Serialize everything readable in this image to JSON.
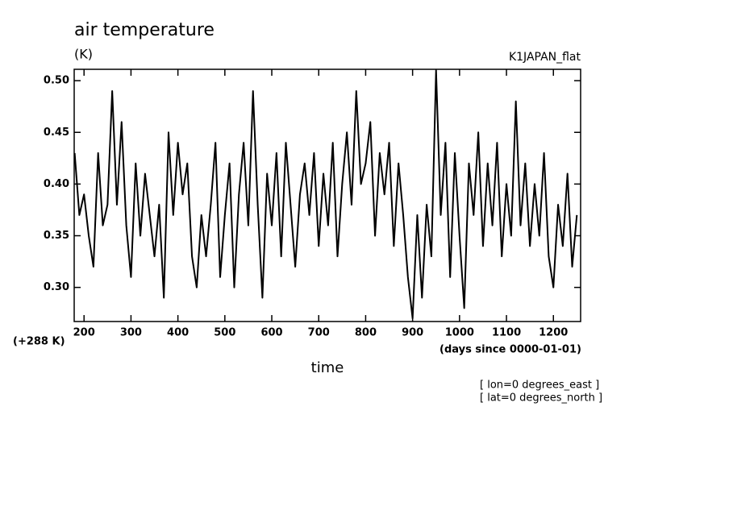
{
  "chart_data": {
    "type": "line",
    "title": "air temperature",
    "units": "(K)",
    "dataset": "K1JAPAN_flat",
    "y_offset_label": "(+288 K)",
    "xlabel": "time",
    "x_units": "(days since 0000-01-01)",
    "annotations": [
      "[ lon=0 degrees_east ]",
      "[ lat=0 degrees_north ]"
    ],
    "color": "#000000",
    "xlim": [
      179,
      1258
    ],
    "ylim": [
      0.267,
      0.511
    ],
    "xticks": [
      200,
      300,
      400,
      500,
      600,
      700,
      800,
      900,
      1000,
      1100,
      1200
    ],
    "yticks": [
      {
        "value": 0.3,
        "label": "0.30"
      },
      {
        "value": 0.35,
        "label": "0.35"
      },
      {
        "value": 0.4,
        "label": "0.40"
      },
      {
        "value": 0.45,
        "label": "0.45"
      },
      {
        "value": 0.5,
        "label": "0.50"
      }
    ],
    "x": [
      180,
      190,
      200,
      210,
      220,
      230,
      240,
      250,
      260,
      270,
      280,
      290,
      300,
      310,
      320,
      330,
      340,
      350,
      360,
      370,
      380,
      390,
      400,
      410,
      420,
      430,
      440,
      450,
      460,
      470,
      480,
      490,
      500,
      510,
      520,
      530,
      540,
      550,
      560,
      570,
      580,
      590,
      600,
      610,
      620,
      630,
      640,
      650,
      660,
      670,
      680,
      690,
      700,
      710,
      720,
      730,
      740,
      750,
      760,
      770,
      780,
      790,
      800,
      810,
      820,
      830,
      840,
      850,
      860,
      870,
      880,
      890,
      900,
      910,
      920,
      930,
      940,
      950,
      960,
      970,
      980,
      990,
      1000,
      1010,
      1020,
      1030,
      1040,
      1050,
      1060,
      1070,
      1080,
      1090,
      1100,
      1110,
      1120,
      1130,
      1140,
      1150,
      1160,
      1170,
      1180,
      1190,
      1200,
      1210,
      1220,
      1230,
      1240,
      1250
    ],
    "values": [
      0.43,
      0.37,
      0.39,
      0.35,
      0.32,
      0.43,
      0.36,
      0.38,
      0.49,
      0.38,
      0.46,
      0.36,
      0.31,
      0.42,
      0.35,
      0.41,
      0.37,
      0.33,
      0.38,
      0.29,
      0.45,
      0.37,
      0.44,
      0.39,
      0.42,
      0.33,
      0.3,
      0.37,
      0.33,
      0.38,
      0.44,
      0.31,
      0.37,
      0.42,
      0.3,
      0.39,
      0.44,
      0.36,
      0.49,
      0.38,
      0.29,
      0.41,
      0.36,
      0.43,
      0.33,
      0.44,
      0.38,
      0.32,
      0.39,
      0.42,
      0.37,
      0.43,
      0.34,
      0.41,
      0.36,
      0.44,
      0.33,
      0.4,
      0.45,
      0.38,
      0.49,
      0.4,
      0.42,
      0.46,
      0.35,
      0.43,
      0.39,
      0.44,
      0.34,
      0.42,
      0.37,
      0.31,
      0.27,
      0.37,
      0.29,
      0.38,
      0.33,
      0.51,
      0.37,
      0.44,
      0.31,
      0.43,
      0.35,
      0.28,
      0.42,
      0.37,
      0.45,
      0.34,
      0.42,
      0.36,
      0.44,
      0.33,
      0.4,
      0.35,
      0.48,
      0.36,
      0.42,
      0.34,
      0.4,
      0.35,
      0.43,
      0.33,
      0.3,
      0.38,
      0.34,
      0.41,
      0.32,
      0.37
    ]
  }
}
